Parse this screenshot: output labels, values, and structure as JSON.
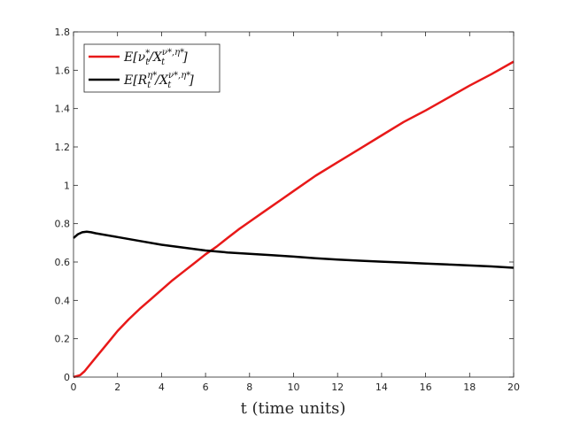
{
  "chart_data": {
    "type": "line",
    "title": "",
    "xlabel": "t (time units)",
    "ylabel": "",
    "xlim": [
      0,
      20
    ],
    "ylim": [
      0,
      1.8
    ],
    "xticks": [
      0,
      2,
      4,
      6,
      8,
      10,
      12,
      14,
      16,
      18,
      20
    ],
    "yticks": [
      0,
      0.2,
      0.4,
      0.6,
      0.8,
      1,
      1.2,
      1.4,
      1.6,
      1.8
    ],
    "xtick_labels": [
      "0",
      "2",
      "4",
      "6",
      "8",
      "10",
      "12",
      "14",
      "16",
      "18",
      "20"
    ],
    "ytick_labels": [
      "0",
      "0.2",
      "0.4",
      "0.6",
      "0.8",
      "1",
      "1.2",
      "1.4",
      "1.6",
      "1.8"
    ],
    "grid": false,
    "legend_position": "top-left",
    "series": [
      {
        "name": "E[ν_t^*/X_t^{ν^*,η^*}]",
        "color": "#e81919",
        "x": [
          0,
          0.3,
          0.5,
          1,
          1.5,
          2,
          2.5,
          3,
          3.5,
          4,
          4.5,
          5,
          5.5,
          6,
          6.5,
          7,
          7.5,
          8,
          8.5,
          9,
          9.5,
          10,
          11,
          12,
          13,
          14,
          15,
          16,
          17,
          18,
          19,
          20
        ],
        "values": [
          0,
          0.01,
          0.03,
          0.1,
          0.17,
          0.24,
          0.3,
          0.355,
          0.405,
          0.455,
          0.505,
          0.55,
          0.595,
          0.64,
          0.68,
          0.725,
          0.77,
          0.81,
          0.85,
          0.89,
          0.93,
          0.97,
          1.05,
          1.12,
          1.19,
          1.26,
          1.33,
          1.39,
          1.455,
          1.52,
          1.58,
          1.645
        ]
      },
      {
        "name": "E[R_t^{η^*}/X_t^{ν^*,η^*}]",
        "color": "#000000",
        "x": [
          0,
          0.2,
          0.4,
          0.6,
          0.8,
          1,
          2,
          3,
          4,
          5,
          6,
          7,
          8,
          9,
          10,
          11,
          12,
          13,
          14,
          15,
          16,
          17,
          18,
          19,
          20
        ],
        "values": [
          0.725,
          0.745,
          0.755,
          0.758,
          0.755,
          0.75,
          0.73,
          0.71,
          0.69,
          0.675,
          0.66,
          0.65,
          0.643,
          0.636,
          0.628,
          0.62,
          0.613,
          0.607,
          0.602,
          0.597,
          0.592,
          0.587,
          0.582,
          0.577,
          0.57
        ]
      }
    ]
  }
}
